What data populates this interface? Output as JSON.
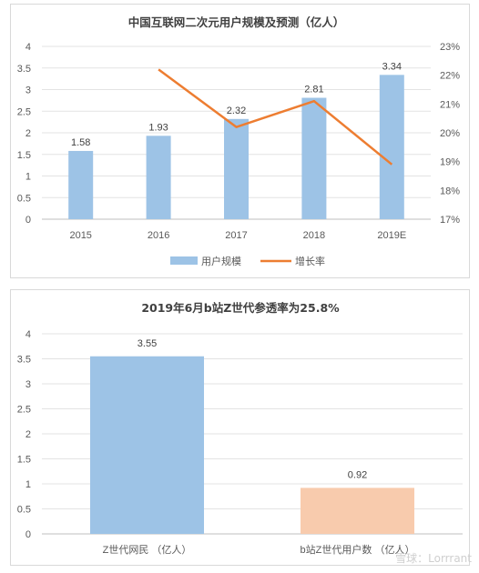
{
  "chart_data": [
    {
      "type": "bar",
      "title": "中国互联网二次元用户规模及预测（亿人）",
      "categories": [
        "2015",
        "2016",
        "2017",
        "2018",
        "2019E"
      ],
      "series": [
        {
          "name": "用户规模",
          "type": "bar",
          "axis": "left",
          "values": [
            1.58,
            1.93,
            2.32,
            2.81,
            3.34
          ],
          "labels": [
            "1.58",
            "1.93",
            "2.32",
            "2.81",
            "3.34"
          ],
          "color": "#9dc3e6"
        },
        {
          "name": "增长率",
          "type": "line",
          "axis": "right",
          "values": [
            null,
            22.2,
            20.2,
            21.1,
            18.9
          ],
          "color": "#ed7d31"
        }
      ],
      "ylim": [
        0,
        4
      ],
      "yticks": [
        "0",
        "0.5",
        "1",
        "1.5",
        "2",
        "2.5",
        "3",
        "3.5",
        "4"
      ],
      "y2lim": [
        17,
        23
      ],
      "y2ticks": [
        "17%",
        "18%",
        "19%",
        "20%",
        "21%",
        "22%",
        "23%"
      ],
      "legend": "bottom",
      "grid": true
    },
    {
      "type": "bar",
      "title": "2019年6月b站Z世代参透率为25.8%",
      "categories": [
        "Z世代网民 （亿人）",
        "b站Z世代用户数 （亿人）"
      ],
      "values": [
        3.55,
        0.92
      ],
      "labels": [
        "3.55",
        "0.92"
      ],
      "colors": [
        "#9dc3e6",
        "#f8cbad"
      ],
      "ylim": [
        0,
        4
      ],
      "yticks": [
        "0",
        "0.5",
        "1",
        "1.5",
        "2",
        "2.5",
        "3",
        "3.5",
        "4"
      ],
      "grid": true
    }
  ],
  "watermark": "雪球：Lorrrant"
}
